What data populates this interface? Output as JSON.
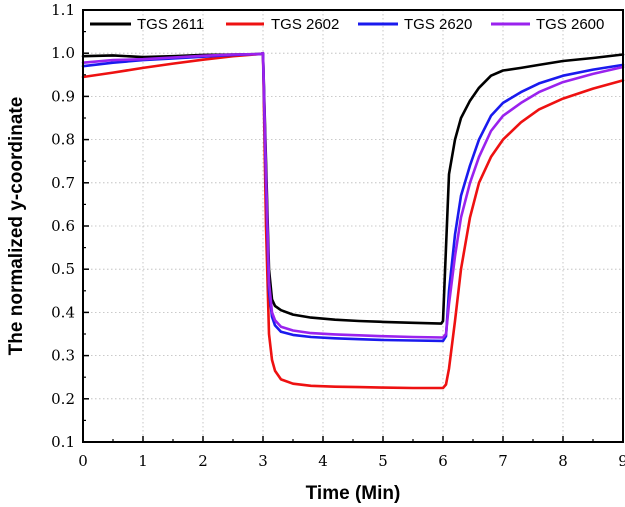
{
  "chart_data": {
    "type": "line",
    "title": "",
    "xlabel": "Time (Min)",
    "ylabel": "The normalized y-coordinate",
    "xlim": [
      0,
      9
    ],
    "ylim": [
      0.1,
      1.1
    ],
    "xticks": [
      0,
      1,
      2,
      3,
      4,
      5,
      6,
      7,
      8,
      9
    ],
    "yticks": [
      0.1,
      0.2,
      0.3,
      0.4,
      0.5,
      0.6,
      0.7,
      0.8,
      0.9,
      1.0,
      1.1
    ],
    "xtick_labels": [
      "0",
      "1",
      "2",
      "3",
      "4",
      "5",
      "6",
      "7",
      "8",
      "9"
    ],
    "ytick_labels": [
      "0.1",
      "0.2",
      "0.3",
      "0.4",
      "0.5",
      "0.6",
      "0.7",
      "0.8",
      "0.9",
      "1.0",
      "1.1"
    ],
    "grid": true,
    "legend_position": "top",
    "series": [
      {
        "name": "TGS 2611",
        "color": "#000000",
        "x": [
          0,
          0.5,
          1,
          1.5,
          2,
          2.5,
          2.95,
          3.0,
          3.05,
          3.1,
          3.15,
          3.2,
          3.3,
          3.5,
          3.8,
          4.2,
          4.6,
          5.0,
          5.5,
          5.97,
          6.0,
          6.05,
          6.1,
          6.2,
          6.3,
          6.45,
          6.6,
          6.8,
          7.0,
          7.3,
          7.6,
          8.0,
          8.5,
          9.0
        ],
        "y": [
          0.993,
          0.995,
          0.991,
          0.993,
          0.996,
          0.997,
          0.998,
          1.0,
          0.75,
          0.5,
          0.43,
          0.415,
          0.405,
          0.395,
          0.388,
          0.383,
          0.38,
          0.378,
          0.376,
          0.374,
          0.38,
          0.55,
          0.72,
          0.8,
          0.85,
          0.89,
          0.92,
          0.948,
          0.96,
          0.966,
          0.973,
          0.982,
          0.989,
          0.997
        ]
      },
      {
        "name": "TGS 2602",
        "color": "#ee1111",
        "x": [
          0,
          0.5,
          1,
          1.5,
          2,
          2.5,
          2.95,
          3.0,
          3.05,
          3.1,
          3.15,
          3.2,
          3.3,
          3.5,
          3.8,
          4.2,
          4.6,
          5.0,
          5.5,
          6.0,
          6.05,
          6.1,
          6.2,
          6.3,
          6.45,
          6.6,
          6.8,
          7.0,
          7.3,
          7.6,
          8.0,
          8.5,
          9.0
        ],
        "y": [
          0.945,
          0.955,
          0.966,
          0.976,
          0.985,
          0.993,
          0.998,
          1.0,
          0.6,
          0.35,
          0.29,
          0.265,
          0.245,
          0.235,
          0.23,
          0.228,
          0.227,
          0.226,
          0.225,
          0.225,
          0.233,
          0.27,
          0.38,
          0.5,
          0.62,
          0.7,
          0.76,
          0.8,
          0.84,
          0.87,
          0.895,
          0.918,
          0.937
        ]
      },
      {
        "name": "TGS 2620",
        "color": "#1a1aee",
        "x": [
          0,
          0.5,
          1,
          1.5,
          2,
          2.5,
          2.95,
          3.0,
          3.05,
          3.1,
          3.15,
          3.2,
          3.3,
          3.5,
          3.8,
          4.2,
          4.6,
          5.0,
          5.5,
          6.0,
          6.05,
          6.1,
          6.2,
          6.3,
          6.45,
          6.6,
          6.8,
          7.0,
          7.3,
          7.6,
          8.0,
          8.5,
          9.0
        ],
        "y": [
          0.97,
          0.978,
          0.984,
          0.988,
          0.992,
          0.996,
          0.998,
          1.0,
          0.7,
          0.45,
          0.39,
          0.37,
          0.355,
          0.348,
          0.343,
          0.34,
          0.338,
          0.336,
          0.335,
          0.334,
          0.345,
          0.45,
          0.58,
          0.67,
          0.74,
          0.8,
          0.855,
          0.885,
          0.91,
          0.93,
          0.948,
          0.962,
          0.973
        ]
      },
      {
        "name": "TGS 2600",
        "color": "#9a22ee",
        "x": [
          0,
          0.5,
          1,
          1.5,
          2,
          2.5,
          2.95,
          3.0,
          3.05,
          3.1,
          3.15,
          3.2,
          3.3,
          3.5,
          3.8,
          4.2,
          4.6,
          5.0,
          5.5,
          6.0,
          6.05,
          6.1,
          6.2,
          6.3,
          6.45,
          6.6,
          6.8,
          7.0,
          7.3,
          7.6,
          8.0,
          8.5,
          9.0
        ],
        "y": [
          0.978,
          0.984,
          0.986,
          0.99,
          0.994,
          0.997,
          0.998,
          1.0,
          0.72,
          0.47,
          0.4,
          0.382,
          0.367,
          0.358,
          0.352,
          0.349,
          0.347,
          0.345,
          0.343,
          0.342,
          0.35,
          0.42,
          0.53,
          0.62,
          0.7,
          0.76,
          0.82,
          0.855,
          0.885,
          0.91,
          0.933,
          0.952,
          0.968
        ]
      }
    ]
  }
}
